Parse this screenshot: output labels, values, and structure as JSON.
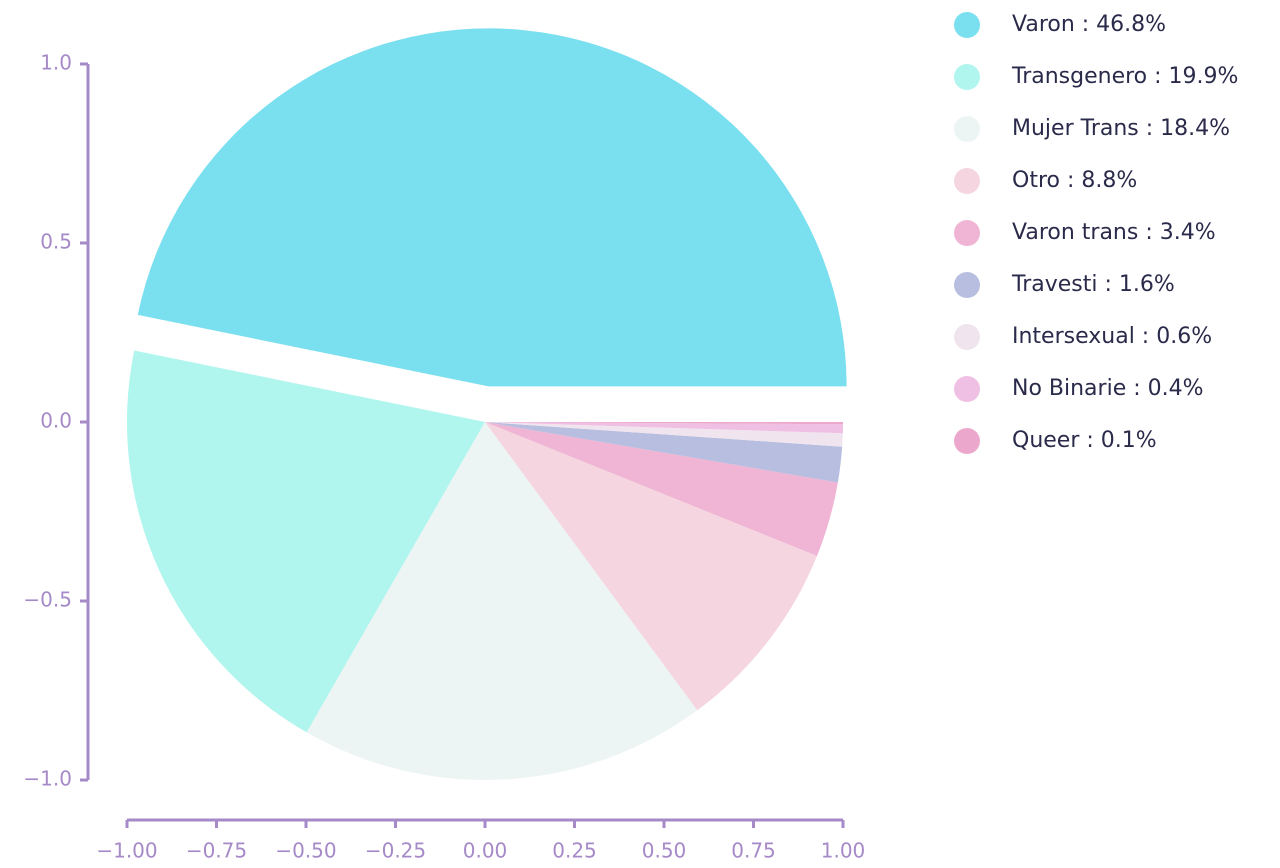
{
  "chart_data": {
    "type": "pie",
    "categories": [
      "Varon : 46.8%",
      "Transgenero : 19.9%",
      "Mujer Trans : 18.4%",
      "Otro : 8.8%",
      "Varon trans : 3.4%",
      "Travesti : 1.6%",
      "Intersexual : 0.6%",
      "No Binarie : 0.4%",
      "Queer : 0.1%"
    ],
    "values": [
      46.8,
      19.9,
      18.4,
      8.8,
      3.4,
      1.6,
      0.6,
      0.4,
      0.1
    ],
    "colors": [
      "#7adfef",
      "#b0f5ee",
      "#edf5f4",
      "#f5d5df",
      "#f0b4d4",
      "#b8bedf",
      "#f0e4ee",
      "#f0c0e4",
      "#eca8cc"
    ],
    "explode": [
      0.1,
      0,
      0,
      0,
      0,
      0,
      0,
      0,
      0
    ],
    "xlim": [
      -1.0,
      1.0
    ],
    "ylim": [
      -1.0,
      1.0
    ],
    "xticks": [
      {
        "value": -1.0,
        "label": "−1.00"
      },
      {
        "value": -0.75,
        "label": "−0.75"
      },
      {
        "value": -0.5,
        "label": "−0.50"
      },
      {
        "value": -0.25,
        "label": "−0.25"
      },
      {
        "value": 0.0,
        "label": "0.00"
      },
      {
        "value": 0.25,
        "label": "0.25"
      },
      {
        "value": 0.5,
        "label": "0.50"
      },
      {
        "value": 0.75,
        "label": "0.75"
      },
      {
        "value": 1.0,
        "label": "1.00"
      }
    ],
    "yticks": [
      {
        "value": -1.0,
        "label": "−1.0"
      },
      {
        "value": -0.5,
        "label": "−0.5"
      },
      {
        "value": 0.0,
        "label": "0.0"
      },
      {
        "value": 0.5,
        "label": "0.5"
      },
      {
        "value": 1.0,
        "label": "1.0"
      }
    ],
    "legend": "upper right"
  }
}
